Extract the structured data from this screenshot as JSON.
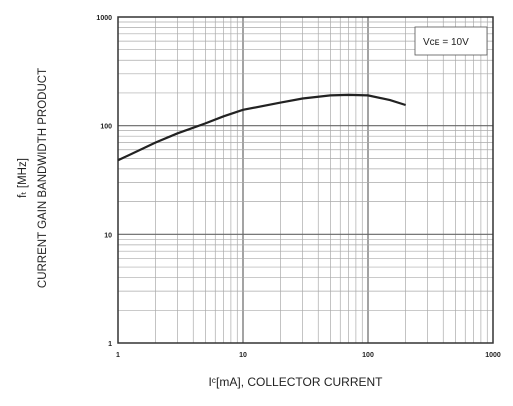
{
  "chart_data": {
    "type": "line",
    "ylabel_unit": "fₜ [MHz]",
    "ylabel": "CURRENT GAIN BANDWIDTH PRODUCT",
    "xlabel": "Iᶜ[mA], COLLECTOR CURRENT",
    "xscale": "log",
    "yscale": "log",
    "xlim": [
      1,
      1000
    ],
    "ylim": [
      1,
      1000
    ],
    "x_ticks": [
      "1",
      "10",
      "100",
      "1000"
    ],
    "y_ticks": [
      "1",
      "10",
      "100",
      "1000"
    ],
    "grid": true,
    "annotation": "Vᴄᴇ = 10V",
    "annotation_position": "top-right",
    "series": [
      {
        "x": [
          1,
          2,
          3,
          5,
          7,
          10,
          20,
          30,
          50,
          70,
          100,
          150,
          200
        ],
        "y": [
          48,
          70,
          85,
          105,
          122,
          140,
          163,
          178,
          190,
          192,
          190,
          172,
          155
        ]
      }
    ]
  }
}
